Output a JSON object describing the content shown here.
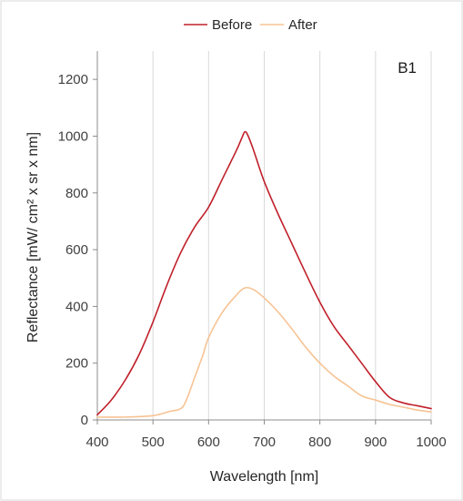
{
  "chart_data": {
    "type": "line",
    "title": "",
    "panel_label": "B1",
    "xlabel": "Wavelength [nm]",
    "ylabel": "Reflectance [mW/ cm² x sr x nm]",
    "xlim": [
      400,
      1000
    ],
    "ylim": [
      0,
      1300
    ],
    "xticks": [
      400,
      500,
      600,
      700,
      800,
      900,
      1000
    ],
    "yticks": [
      0,
      200,
      400,
      600,
      800,
      1000,
      1200
    ],
    "grid": "vertical",
    "legend_position": "top-center",
    "series": [
      {
        "name": "Before",
        "color": "#c0202a",
        "x": [
          400,
          425,
          450,
          475,
          500,
          525,
          550,
          575,
          600,
          625,
          650,
          660,
          665,
          670,
          680,
          700,
          725,
          750,
          775,
          800,
          825,
          850,
          875,
          900,
          925,
          950,
          975,
          1000
        ],
        "y": [
          18,
          70,
          140,
          230,
          345,
          475,
          590,
          680,
          750,
          850,
          950,
          995,
          1015,
          1005,
          955,
          840,
          725,
          620,
          515,
          415,
          330,
          265,
          200,
          135,
          80,
          60,
          50,
          40
        ]
      },
      {
        "name": "After",
        "color": "#f7c394",
        "x": [
          400,
          450,
          500,
          530,
          550,
          560,
          575,
          590,
          600,
          625,
          650,
          665,
          680,
          700,
          725,
          750,
          775,
          800,
          825,
          850,
          875,
          900,
          925,
          950,
          975,
          1000
        ],
        "y": [
          10,
          10,
          15,
          30,
          40,
          70,
          150,
          230,
          290,
          380,
          440,
          465,
          460,
          430,
          380,
          320,
          255,
          200,
          155,
          120,
          85,
          70,
          55,
          45,
          35,
          28
        ]
      }
    ]
  }
}
